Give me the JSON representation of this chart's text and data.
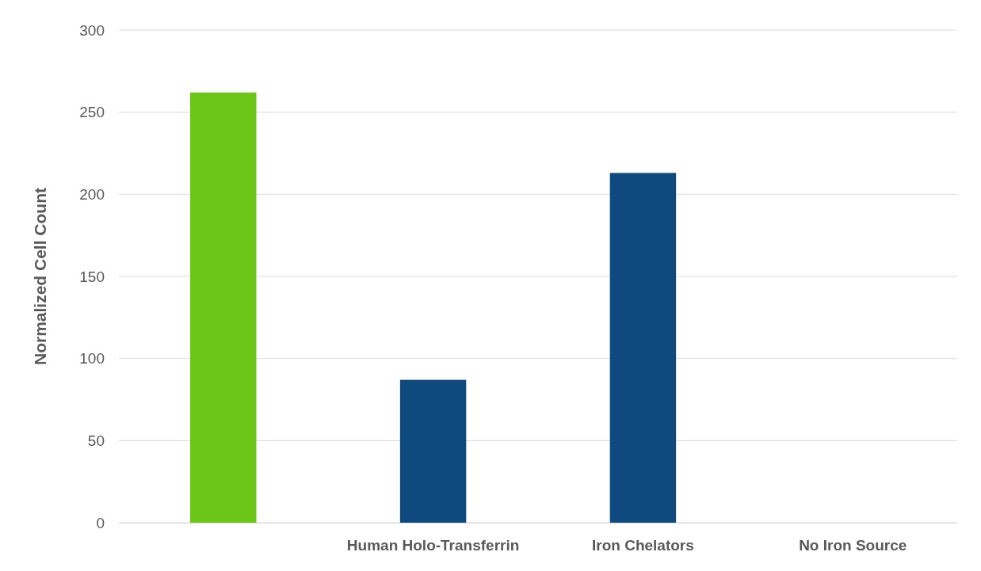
{
  "chart_data": {
    "type": "bar",
    "ylabel": "Normalized Cell Count",
    "categories": [
      null,
      "Human Holo-Transferrin",
      "Iron Chelators",
      "No Iron Source"
    ],
    "values": [
      262,
      87,
      213,
      0
    ],
    "colors": [
      "#6ac516",
      "#0f4a7e",
      "#0f4a7e",
      "#0f4a7e"
    ],
    "ylim": [
      0,
      300
    ],
    "yticks": [
      0,
      50,
      100,
      150,
      200,
      250,
      300
    ],
    "grid": "y"
  }
}
